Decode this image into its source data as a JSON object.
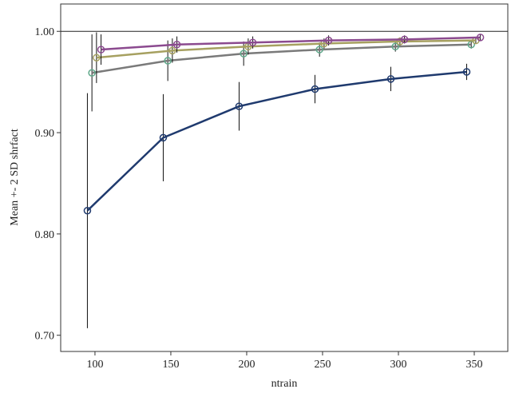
{
  "chart_data": {
    "type": "errorbar-line",
    "x_label": "ntrain",
    "y_label": "Mean +- 2 SD shrfact",
    "xlim": [
      77.4,
      372.1
    ],
    "ylim": [
      0.684,
      1.027
    ],
    "xticks": [
      100,
      150,
      200,
      250,
      300,
      350
    ],
    "yticks": [
      {
        "value": 0.7,
        "label": "0.70"
      },
      {
        "value": 0.8,
        "label": "0.80"
      },
      {
        "value": 0.9,
        "label": "0.90"
      },
      {
        "value": 1.0,
        "label": "1.00"
      }
    ],
    "hline": 1.0,
    "series": [
      {
        "color": "#7a7a7a",
        "marker_color": "#5fa88a",
        "x": [
          98,
          148,
          198,
          248,
          298,
          348
        ],
        "values": [
          0.959,
          0.971,
          0.978,
          0.982,
          0.985,
          0.987
        ],
        "errors": [
          0.038,
          0.02,
          0.012,
          0.007,
          0.005,
          0.004
        ]
      },
      {
        "color": "#a6a060",
        "marker_color": "#a6a060",
        "x": [
          101,
          151,
          201,
          251,
          301,
          351
        ],
        "values": [
          0.974,
          0.981,
          0.985,
          0.988,
          0.99,
          0.991
        ],
        "errors": [
          0.025,
          0.012,
          0.008,
          0.005,
          0.004,
          0.003
        ]
      },
      {
        "color": "#8b4a8f",
        "marker_color": "#8b4a8f",
        "x": [
          104,
          154,
          204,
          254,
          304,
          354
        ],
        "values": [
          0.982,
          0.987,
          0.989,
          0.991,
          0.992,
          0.994
        ],
        "errors": [
          0.015,
          0.008,
          0.006,
          0.005,
          0.004,
          0.003
        ]
      },
      {
        "color": "#1f3a6e",
        "marker_color": "#1f3a6e",
        "x": [
          95,
          145,
          195,
          245,
          295,
          345
        ],
        "values": [
          0.823,
          0.895,
          0.926,
          0.943,
          0.953,
          0.96
        ],
        "errors": [
          0.116,
          0.043,
          0.024,
          0.014,
          0.012,
          0.008
        ]
      }
    ]
  }
}
